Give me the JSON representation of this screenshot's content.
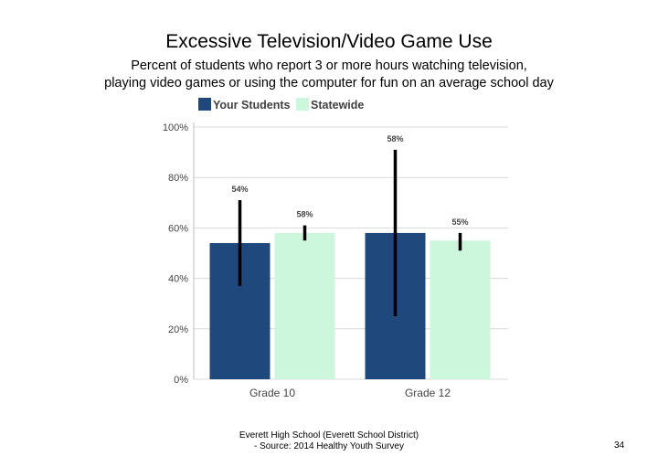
{
  "slide": {
    "title": "Excessive Television/Video Game Use",
    "subtitle_line1": "Percent of students who report 3 or more hours watching television,",
    "subtitle_line2": "playing video games or using the computer for fun on an average school day",
    "footer_line1": "Everett High School (Everett School District)",
    "footer_line2": "- Source: 2014 Healthy Youth Survey",
    "page_number": "34"
  },
  "chart_data": {
    "type": "bar",
    "categories": [
      "Grade 10",
      "Grade 12"
    ],
    "series": [
      {
        "name": "Your Students",
        "color": "#1f497d",
        "values": [
          54,
          58
        ],
        "labels": [
          "54%",
          "58%"
        ],
        "error_low": [
          37,
          25
        ],
        "error_high": [
          71,
          91
        ]
      },
      {
        "name": "Statewide",
        "color": "#ccf7dd",
        "values": [
          58,
          55
        ],
        "labels": [
          "58%",
          "55%"
        ],
        "error_low": [
          55,
          51
        ],
        "error_high": [
          61,
          58
        ]
      }
    ],
    "ylim": [
      0,
      100
    ],
    "yticks": [
      0,
      20,
      40,
      60,
      80,
      100
    ],
    "ytick_labels": [
      "0%",
      "20%",
      "40%",
      "60%",
      "80%",
      "100%"
    ],
    "legend_position": "top-left",
    "grid": true,
    "gridline_color": "#d9d9d9",
    "error_bar_color": "#000000"
  }
}
